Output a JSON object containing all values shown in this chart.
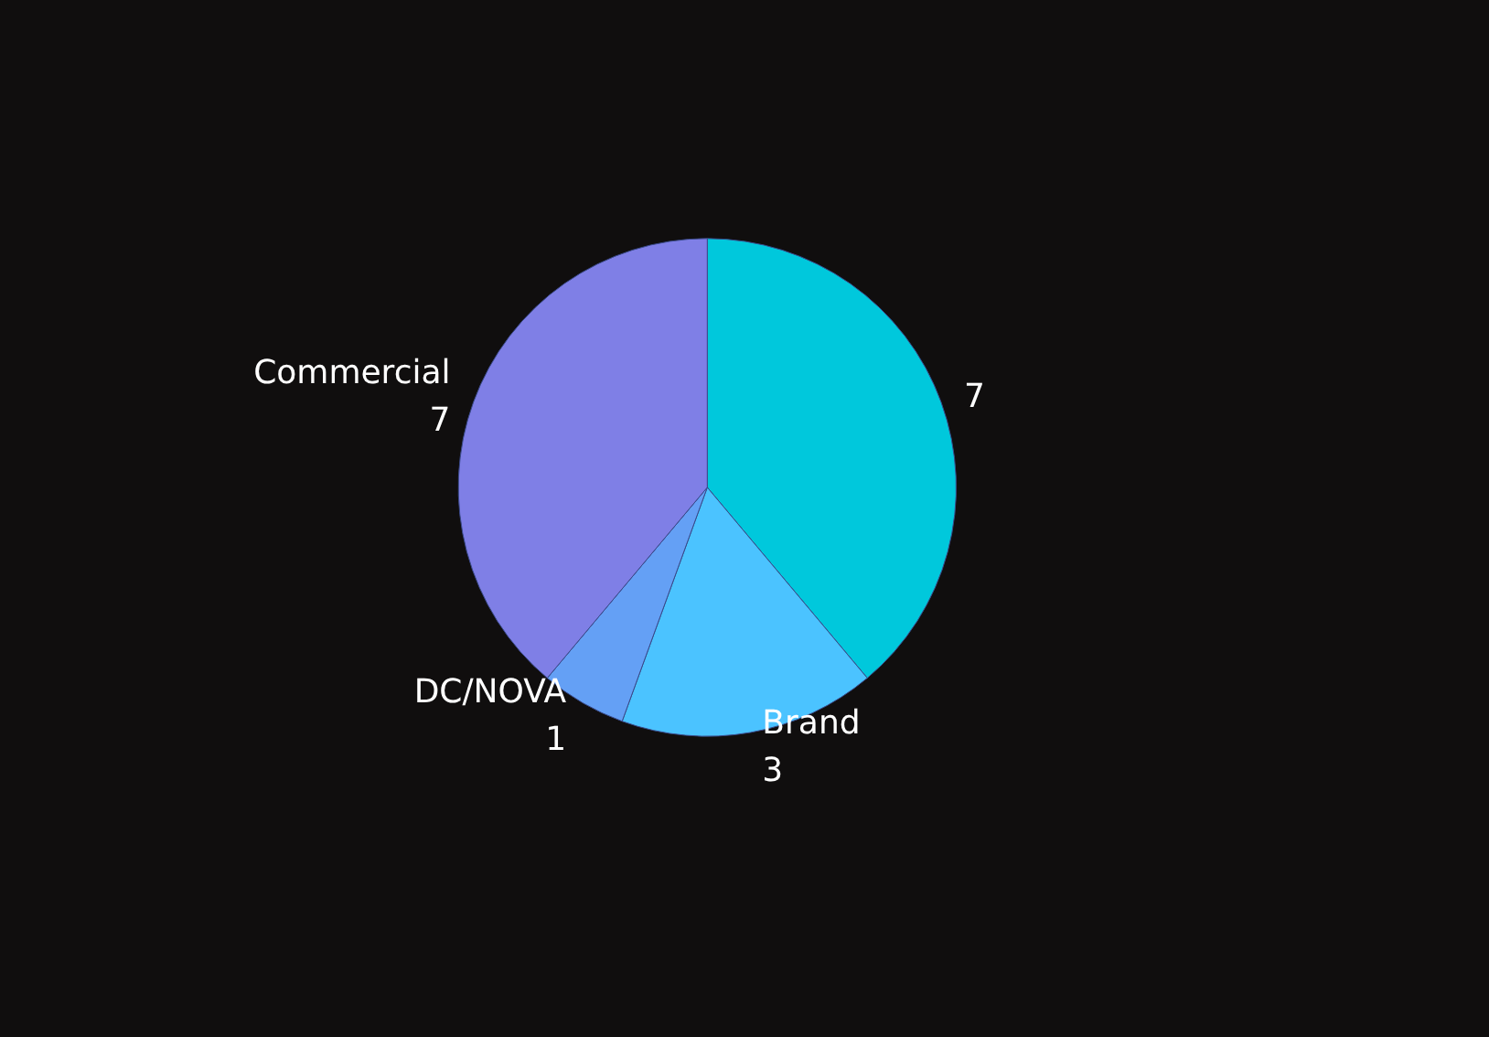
{
  "chart_data": {
    "type": "pie",
    "categories": [
      null,
      "Brand",
      "DC/NOVA",
      "Commercial"
    ],
    "values": [
      7,
      3,
      1,
      7
    ],
    "colors": [
      "#00c8dc",
      "#4bc3ff",
      "#64a0f5",
      "#7f7fe6"
    ],
    "data_labels": true,
    "legend": false
  }
}
